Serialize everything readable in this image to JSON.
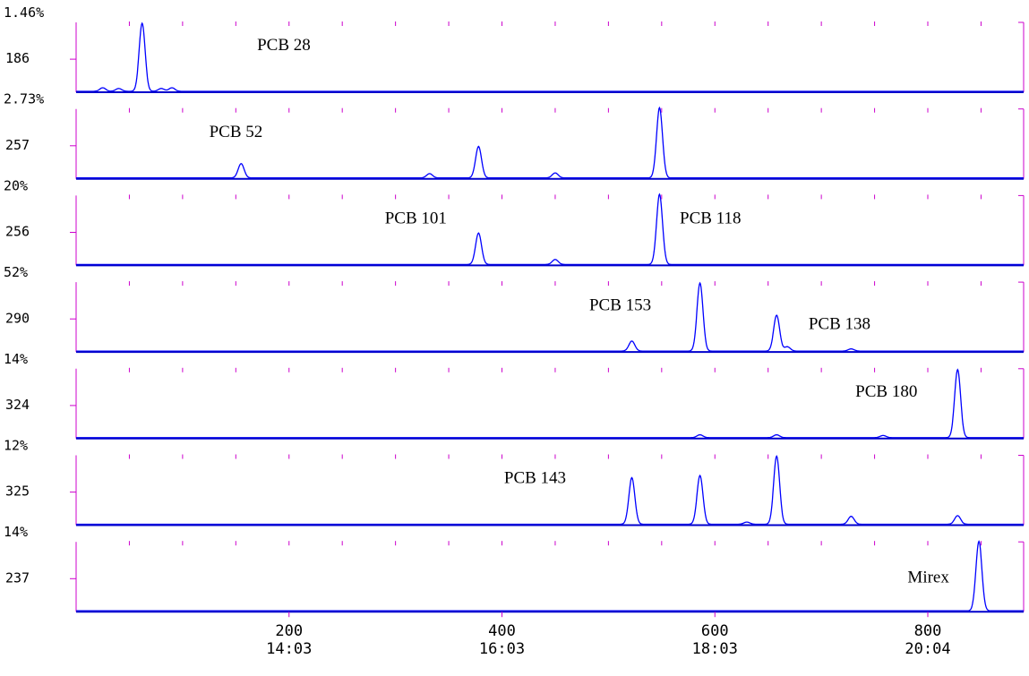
{
  "chart_data": {
    "type": "line",
    "x_ticks": [
      {
        "scan": "200",
        "time": "14:03"
      },
      {
        "scan": "400",
        "time": "16:03"
      },
      {
        "scan": "600",
        "time": "18:03"
      },
      {
        "scan": "800",
        "time": "20:04"
      }
    ],
    "xlim": [
      0,
      890
    ],
    "colors": {
      "trace": "#0000ff",
      "axis": "#0000cc",
      "frame": "#cc00cc",
      "text": "#000000"
    },
    "panels": [
      {
        "percent": "1.46%",
        "mass": "186",
        "peaks": [
          {
            "x": 62,
            "h": 0.95
          },
          {
            "x": 25,
            "h": 0.05
          },
          {
            "x": 40,
            "h": 0.04
          },
          {
            "x": 80,
            "h": 0.04
          },
          {
            "x": 90,
            "h": 0.05
          }
        ],
        "labels": [
          {
            "text": "PCB 28",
            "x": 170,
            "y": 0.62
          }
        ]
      },
      {
        "percent": "2.73%",
        "mass": "257",
        "peaks": [
          {
            "x": 155,
            "h": 0.2
          },
          {
            "x": 332,
            "h": 0.06
          },
          {
            "x": 378,
            "h": 0.44
          },
          {
            "x": 450,
            "h": 0.07
          },
          {
            "x": 548,
            "h": 0.98
          }
        ],
        "labels": [
          {
            "text": "PCB 52",
            "x": 125,
            "y": 0.62
          }
        ]
      },
      {
        "percent": "20%",
        "mass": "256",
        "peaks": [
          {
            "x": 378,
            "h": 0.44
          },
          {
            "x": 450,
            "h": 0.07
          },
          {
            "x": 548,
            "h": 0.98
          }
        ],
        "labels": [
          {
            "text": "PCB 101",
            "x": 290,
            "y": 0.62
          },
          {
            "text": "PCB 118",
            "x": 567,
            "y": 0.62
          }
        ]
      },
      {
        "percent": "52%",
        "mass": "290",
        "peaks": [
          {
            "x": 522,
            "h": 0.14
          },
          {
            "x": 586,
            "h": 0.95
          },
          {
            "x": 658,
            "h": 0.5
          },
          {
            "x": 668,
            "h": 0.06
          },
          {
            "x": 728,
            "h": 0.03
          }
        ],
        "labels": [
          {
            "text": "PCB 153",
            "x": 482,
            "y": 0.62
          },
          {
            "text": "PCB 138",
            "x": 688,
            "y": 0.36
          }
        ]
      },
      {
        "percent": "14%",
        "mass": "324",
        "peaks": [
          {
            "x": 586,
            "h": 0.04
          },
          {
            "x": 658,
            "h": 0.04
          },
          {
            "x": 758,
            "h": 0.03
          },
          {
            "x": 828,
            "h": 0.95
          }
        ],
        "labels": [
          {
            "text": "PCB 180",
            "x": 732,
            "y": 0.62
          }
        ]
      },
      {
        "percent": "12%",
        "mass": "325",
        "peaks": [
          {
            "x": 522,
            "h": 0.65
          },
          {
            "x": 586,
            "h": 0.68
          },
          {
            "x": 630,
            "h": 0.03
          },
          {
            "x": 658,
            "h": 0.95
          },
          {
            "x": 728,
            "h": 0.11
          },
          {
            "x": 828,
            "h": 0.12
          }
        ],
        "labels": [
          {
            "text": "PCB 143",
            "x": 402,
            "y": 0.62
          }
        ]
      },
      {
        "percent": "14%",
        "mass": "237",
        "peaks": [
          {
            "x": 848,
            "h": 0.97
          }
        ],
        "labels": [
          {
            "text": "Mirex",
            "x": 781,
            "y": 0.45
          }
        ]
      }
    ]
  }
}
